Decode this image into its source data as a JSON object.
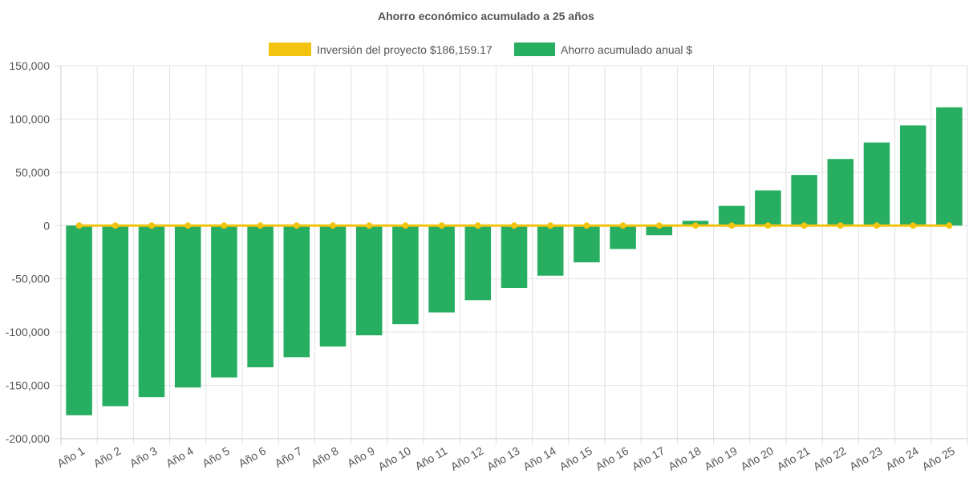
{
  "chart_data": {
    "type": "bar",
    "title": "Ahorro económico acumulado a 25 años",
    "categories": [
      "Año 1",
      "Año 2",
      "Año 3",
      "Año 4",
      "Año 5",
      "Año 6",
      "Año 7",
      "Año 8",
      "Año 9",
      "Año 10",
      "Año 11",
      "Año 12",
      "Año 13",
      "Año 14",
      "Año 15",
      "Año 16",
      "Año 17",
      "Año 18",
      "Año 19",
      "Año 20",
      "Año 21",
      "Año 22",
      "Año 23",
      "Año 24",
      "Año 25"
    ],
    "ylim": [
      -200000,
      150000
    ],
    "yticks": [
      150000,
      100000,
      50000,
      0,
      -50000,
      -100000,
      -150000,
      -200000
    ],
    "ytick_labels": [
      "150,000",
      "100,000",
      "50,000",
      "0",
      "-50,000",
      "-100,000",
      "-150,000",
      "-200,000"
    ],
    "grid": true,
    "legend_position": "top-center",
    "series": [
      {
        "name": "Inversión del proyecto $186,159.17",
        "type": "line",
        "color": "#f2c40f",
        "values": [
          0,
          0,
          0,
          0,
          0,
          0,
          0,
          0,
          0,
          0,
          0,
          0,
          0,
          0,
          0,
          0,
          0,
          0,
          0,
          0,
          0,
          0,
          0,
          0,
          0
        ]
      },
      {
        "name": "Ahorro acumulado anual $",
        "type": "bar",
        "color": "#27ae60",
        "values": [
          -178000,
          -169500,
          -161000,
          -152000,
          -142500,
          -133000,
          -123500,
          -113500,
          -103000,
          -92500,
          -81500,
          -70000,
          -58500,
          -47000,
          -34500,
          -22000,
          -9000,
          4500,
          18500,
          33000,
          47500,
          62500,
          78000,
          94000,
          111000
        ]
      }
    ]
  }
}
